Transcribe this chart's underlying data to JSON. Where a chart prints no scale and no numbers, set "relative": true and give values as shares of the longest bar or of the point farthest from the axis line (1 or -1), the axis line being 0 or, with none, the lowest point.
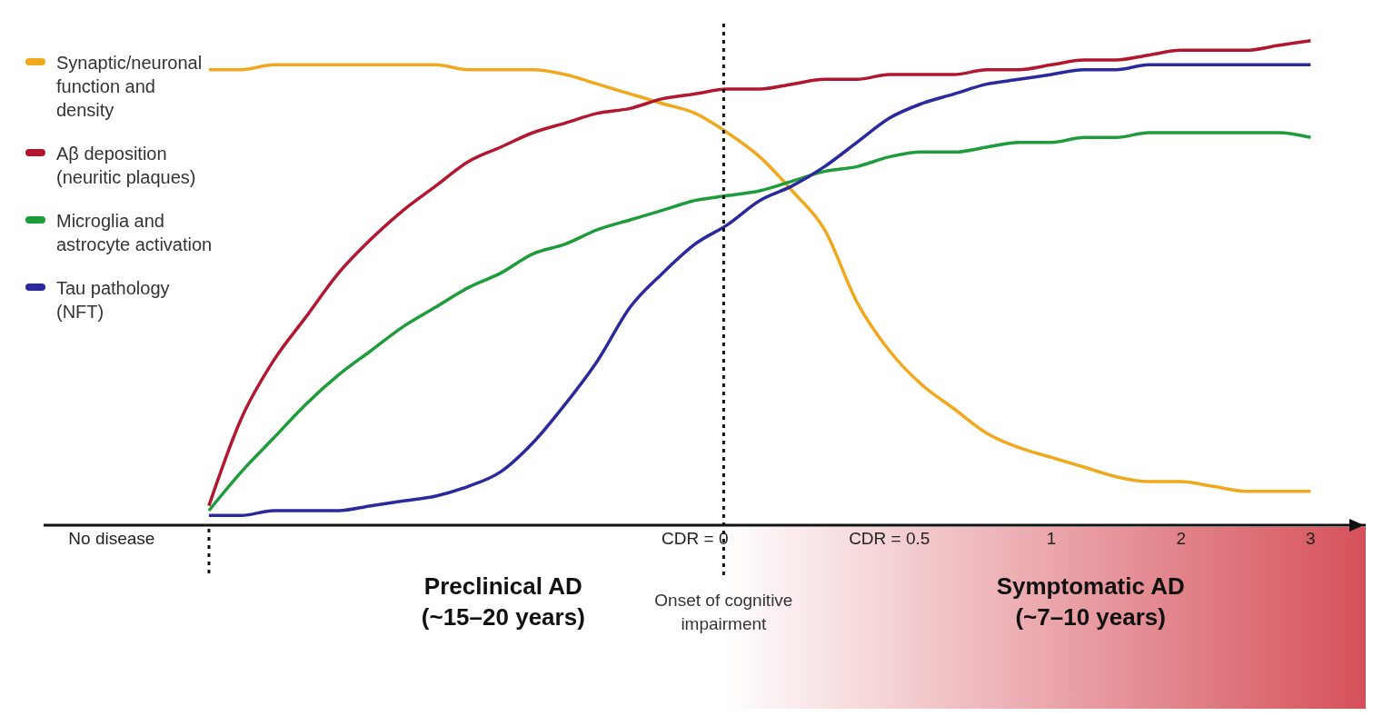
{
  "chart_data": {
    "type": "line",
    "relative": true,
    "categories": [
      "No disease",
      null,
      null,
      null,
      null,
      null,
      null,
      null,
      null,
      null,
      null,
      null,
      null,
      null,
      null,
      null,
      null,
      null,
      "CDR = 0",
      null,
      null,
      null,
      null,
      null,
      "CDR = 0.5",
      null,
      null,
      null,
      null,
      "1",
      null,
      null,
      null,
      "2",
      null,
      null,
      null,
      "3"
    ],
    "series": [
      {
        "name": "Synaptic/neuronal function and density",
        "color": "#f0a81e",
        "values": [
          null,
          null,
          null,
          0.94,
          0.94,
          0.95,
          0.95,
          0.95,
          0.95,
          0.95,
          0.95,
          0.94,
          0.94,
          0.94,
          0.93,
          0.91,
          0.89,
          0.87,
          0.85,
          0.81,
          0.76,
          0.69,
          0.61,
          0.46,
          0.36,
          0.29,
          0.24,
          0.19,
          0.16,
          0.14,
          0.12,
          0.1,
          0.09,
          0.09,
          0.08,
          0.07,
          0.07,
          0.07
        ]
      },
      {
        "name": "Aβ deposition (neuritic plaques)",
        "color": "#b3172f",
        "values": [
          null,
          null,
          null,
          0.04,
          0.22,
          0.34,
          0.43,
          0.52,
          0.59,
          0.65,
          0.7,
          0.75,
          0.78,
          0.81,
          0.83,
          0.85,
          0.86,
          0.88,
          0.89,
          0.9,
          0.9,
          0.91,
          0.92,
          0.92,
          0.93,
          0.93,
          0.93,
          0.94,
          0.94,
          0.95,
          0.96,
          0.96,
          0.97,
          0.98,
          0.98,
          0.98,
          0.99,
          1
        ]
      },
      {
        "name": "Microglia and astrocyte activation",
        "color": "#1e9b3a",
        "values": [
          null,
          null,
          null,
          0.03,
          0.11,
          0.18,
          0.25,
          0.31,
          0.36,
          0.41,
          0.45,
          0.49,
          0.52,
          0.56,
          0.58,
          0.61,
          0.63,
          0.65,
          0.67,
          0.68,
          0.69,
          0.71,
          0.73,
          0.74,
          0.76,
          0.77,
          0.77,
          0.78,
          0.79,
          0.79,
          0.8,
          0.8,
          0.81,
          0.81,
          0.81,
          0.81,
          0.81,
          0.8
        ]
      },
      {
        "name": "Tau pathology (NFT)",
        "color": "#2a2a9e",
        "values": [
          null,
          null,
          null,
          0.02,
          0.02,
          0.03,
          0.03,
          0.03,
          0.04,
          0.05,
          0.06,
          0.08,
          0.11,
          0.17,
          0.25,
          0.34,
          0.45,
          0.52,
          0.58,
          0.62,
          0.67,
          0.7,
          0.74,
          0.79,
          0.84,
          0.87,
          0.89,
          0.91,
          0.92,
          0.93,
          0.94,
          0.94,
          0.95,
          0.95,
          0.95,
          0.95,
          0.95,
          0.95
        ]
      }
    ],
    "annotations": [
      "Preclinical AD (~15–20 years)",
      "Onset of cognitive impairment",
      "Symptomatic AD (~7–10 years)"
    ],
    "legend": "top left",
    "marker": "none",
    "line_style": "solid"
  }
}
